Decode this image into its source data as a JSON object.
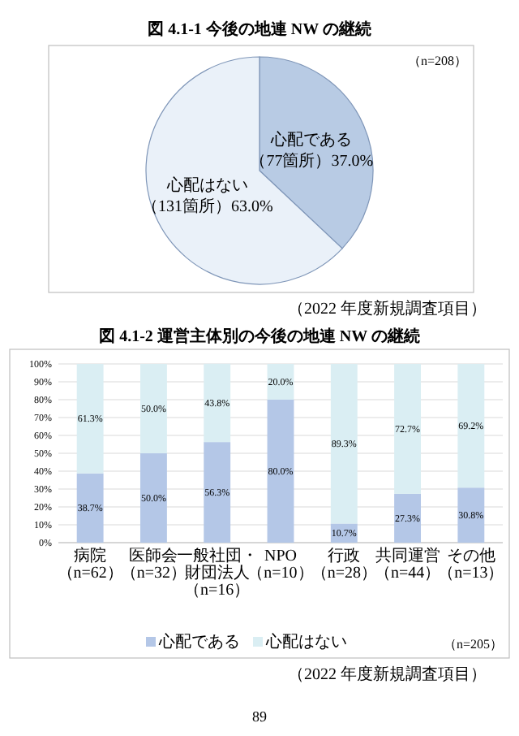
{
  "chart_data": [
    {
      "type": "pie",
      "title": "図 4.1-1 今後の地連 NW の継続",
      "categories": [
        "心配である",
        "心配はない"
      ],
      "values": [
        37.0,
        63.0
      ],
      "colors": [
        "#b8cbe4",
        "#eaf1f9"
      ],
      "value_labels": [
        "（77箇所）37.0%",
        "（131箇所）63.0%"
      ],
      "annotations": [
        "（n=208）",
        "（2022 年度新規調査項目）"
      ]
    },
    {
      "type": "bar",
      "stacked": true,
      "title": "図 4.1-2 運営主体別の今後の地連 NW の継続",
      "categories": [
        "病院（n=62）",
        "医師会（n=32）",
        "一般社団・財団法人（n=16）",
        "NPO（n=10）",
        "行政（n=28）",
        "共同運営（n=44）",
        "その他（n=13）"
      ],
      "series": [
        {
          "name": "心配である",
          "color": "#b4c7e7",
          "values": [
            38.7,
            50.0,
            56.3,
            80.0,
            10.7,
            27.3,
            30.8
          ],
          "value_labels": [
            "38.7%",
            "50.0%",
            "56.3%",
            "80.0%",
            "10.7%",
            "27.3%",
            "30.8%"
          ]
        },
        {
          "name": "心配はない",
          "color": "#daeef3",
          "values": [
            61.3,
            50.0,
            43.8,
            20.0,
            89.3,
            72.7,
            69.2
          ],
          "value_labels": [
            "61.3%",
            "50.0%",
            "43.8%",
            "20.0%",
            "89.3%",
            "72.7%",
            "69.2%"
          ]
        }
      ],
      "ylim": [
        0,
        100
      ],
      "yticks": [
        {
          "value": 0,
          "label": "0%"
        },
        {
          "value": 10,
          "label": "10%"
        },
        {
          "value": 20,
          "label": "20%"
        },
        {
          "value": 30,
          "label": "30%"
        },
        {
          "value": 40,
          "label": "40%"
        },
        {
          "value": 50,
          "label": "50%"
        },
        {
          "value": 60,
          "label": "60%"
        },
        {
          "value": 70,
          "label": "70%"
        },
        {
          "value": 80,
          "label": "80%"
        },
        {
          "value": 90,
          "label": "90%"
        },
        {
          "value": 100,
          "label": "100%"
        }
      ],
      "grid": "y",
      "legend": "bottom",
      "annotations": [
        "（n=205）",
        "（2022 年度新規調査項目）",
        "89"
      ]
    }
  ]
}
